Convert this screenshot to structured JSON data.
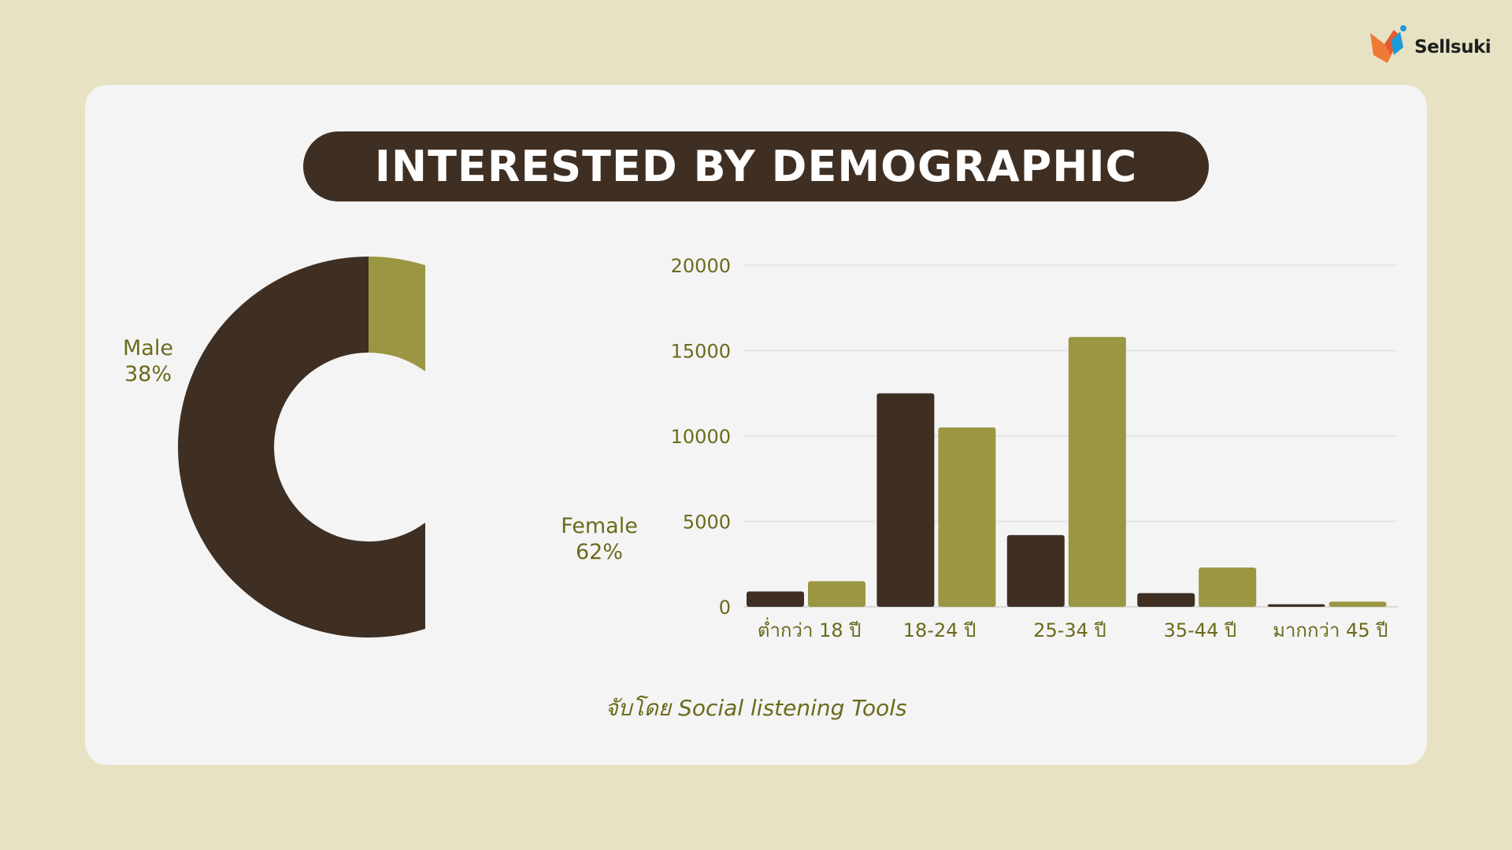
{
  "brand": {
    "name": "Sellsuki",
    "logo_icon": "sellsuki-logo-icon"
  },
  "title": "INTERESTED BY DEMOGRAPHIC",
  "caption": "จับโดย Social listening Tools",
  "colors": {
    "male": "#3f2f23",
    "female": "#9a9642",
    "text": "#6b6a1c",
    "background": "#e7e2c4",
    "card": "#f4f4f4"
  },
  "chart_data": [
    {
      "type": "pie",
      "style": "donut",
      "slices": [
        {
          "name": "Male",
          "percent_label": "38%",
          "value": 38
        },
        {
          "name": "Female",
          "percent_label": "62%",
          "value": 62
        }
      ]
    },
    {
      "type": "bar",
      "categories": [
        "ต่ำกว่า 18 ปี",
        "18-24 ปี",
        "25-34 ปี",
        "35-44 ปี",
        "มากกว่า 45 ปี"
      ],
      "series": [
        {
          "values": [
            900,
            12500,
            4200,
            800,
            150
          ]
        },
        {
          "values": [
            1500,
            10500,
            15800,
            2300,
            300
          ]
        }
      ],
      "yticks": [
        "0",
        "5000",
        "10000",
        "15000",
        "20000"
      ],
      "ylim": [
        0,
        20000
      ],
      "grid": true,
      "legend": "none"
    }
  ]
}
